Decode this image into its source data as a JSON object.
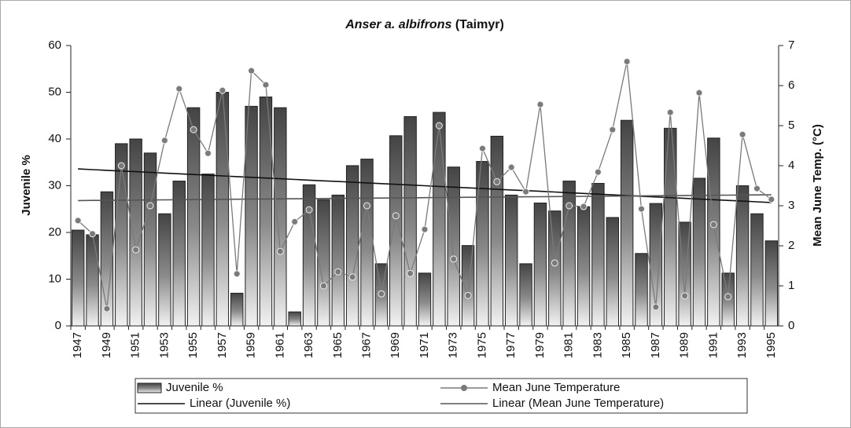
{
  "chart_data": {
    "type": "bar",
    "title": "Anser a. albifrons",
    "subtitle": "(Taimyr)",
    "y_label": "Juvenile %",
    "y2_label": "Mean June Temp. (°C)",
    "categories": [
      "1947",
      null,
      "1949",
      null,
      "1951",
      null,
      "1953",
      null,
      "1955",
      null,
      "1957",
      null,
      "1959",
      null,
      "1961",
      null,
      "1963",
      null,
      "1965",
      null,
      "1967",
      null,
      "1969",
      null,
      "1971",
      null,
      "1973",
      null,
      "1975",
      null,
      "1977",
      null,
      "1979",
      null,
      "1981",
      null,
      "1983",
      null,
      "1985",
      null,
      "1987",
      null,
      "1989",
      null,
      "1991",
      null,
      "1993",
      null,
      "1995"
    ],
    "ylim": [
      0,
      60
    ],
    "yticks": [
      0,
      10,
      20,
      30,
      40,
      50,
      60
    ],
    "y2lim": [
      0,
      7
    ],
    "y2ticks": [
      0,
      1,
      2,
      3,
      4,
      5,
      6,
      7
    ],
    "legend": "bottom",
    "series": [
      {
        "name": "Juvenile %",
        "type": "bar",
        "color": "#555555",
        "values": [
          20.5,
          19.5,
          28.7,
          39,
          40,
          37,
          24,
          31,
          46.7,
          32.5,
          50,
          7,
          47,
          49,
          46.7,
          3,
          30.2,
          27,
          28,
          34.3,
          35.7,
          13.3,
          40.7,
          44.8,
          11.3,
          45.7,
          34,
          17.2,
          35.2,
          40.6,
          28,
          13.3,
          26.3,
          24.6,
          31,
          25.5,
          30.5,
          23.2,
          44,
          15.5,
          26.2,
          42.3,
          22.2,
          31.6,
          40.2,
          11.3,
          30,
          24,
          18.2
        ]
      },
      {
        "name": "Mean June Temperature",
        "type": "line",
        "axis": "y2",
        "color": "#7a7a7a",
        "marker": "circle",
        "values": [
          2.63,
          2.3,
          0.43,
          4.0,
          1.9,
          3.0,
          4.63,
          5.92,
          4.9,
          4.31,
          5.88,
          1.3,
          6.37,
          6.02,
          1.86,
          2.6,
          2.9,
          1.0,
          1.35,
          1.22,
          3.0,
          0.8,
          2.75,
          1.31,
          2.41,
          5.0,
          1.67,
          0.76,
          4.43,
          3.6,
          3.96,
          3.35,
          5.53,
          1.57,
          3.0,
          2.98,
          3.84,
          4.9,
          6.6,
          2.92,
          0.47,
          5.33,
          0.75,
          5.82,
          2.53,
          0.73,
          4.78,
          3.43,
          3.16
        ]
      },
      {
        "name": "Linear (Juvenile %)",
        "type": "line",
        "color": "#111111",
        "values": [
          33.6,
          33.45,
          33.3,
          33.15,
          33,
          32.85,
          32.7,
          32.55,
          32.4,
          32.25,
          32.1,
          31.95,
          31.8,
          31.65,
          31.5,
          31.35,
          31.2,
          31.05,
          30.9,
          30.75,
          30.6,
          30.45,
          30.3,
          30.15,
          30,
          29.85,
          29.7,
          29.55,
          29.4,
          29.25,
          29.1,
          28.95,
          28.8,
          28.65,
          28.5,
          28.35,
          28.2,
          28.05,
          27.9,
          27.75,
          27.6,
          27.45,
          27.3,
          27.15,
          27,
          26.85,
          26.7,
          26.55,
          26.4
        ]
      },
      {
        "name": "Linear (Mean June Temperature)",
        "type": "line",
        "axis": "y2",
        "color": "#555555",
        "values": [
          3.13,
          3.133,
          3.136,
          3.139,
          3.142,
          3.145,
          3.148,
          3.151,
          3.154,
          3.157,
          3.16,
          3.163,
          3.166,
          3.169,
          3.172,
          3.175,
          3.178,
          3.181,
          3.184,
          3.187,
          3.19,
          3.193,
          3.196,
          3.199,
          3.202,
          3.205,
          3.208,
          3.211,
          3.214,
          3.217,
          3.22,
          3.223,
          3.226,
          3.229,
          3.232,
          3.235,
          3.238,
          3.241,
          3.244,
          3.247,
          3.25,
          3.253,
          3.256,
          3.259,
          3.262,
          3.265,
          3.268,
          3.271,
          3.274
        ]
      }
    ]
  }
}
